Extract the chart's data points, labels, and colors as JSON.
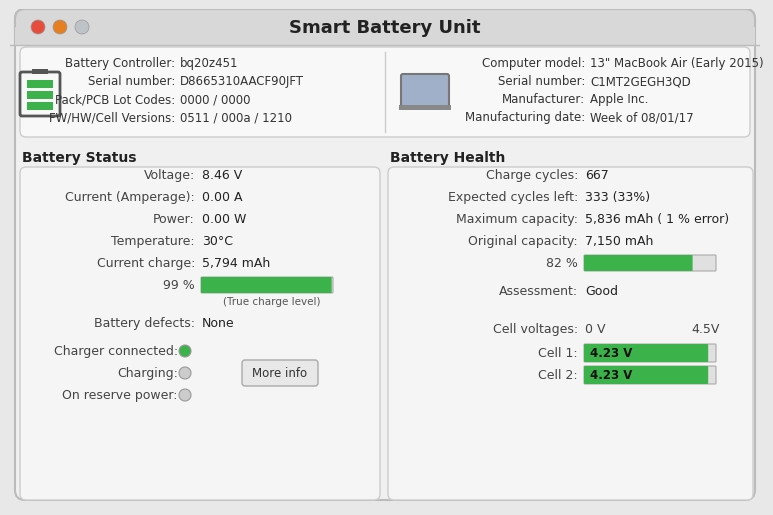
{
  "title": "Smart Battery Unit",
  "title_bar_color": "#c0392b",
  "bg_color": "#f0f0f0",
  "panel_bg": "#f5f5f5",
  "panel_border": "#d0d0d0",
  "section_header_bg": "#e8e8e8",
  "traffic_red": "#e74c3c",
  "traffic_yellow": "#e67e22",
  "traffic_gray": "#bdc3c7",
  "green_bar": "#3cb34a",
  "gray_bar": "#c8c8c8",
  "text_dark": "#222222",
  "text_label": "#555555",
  "top_info_left": [
    [
      "Battery Controller:",
      "bq20z451"
    ],
    [
      "Serial number:",
      "D8665310AACF90JFT"
    ],
    [
      "Pack/PCB Lot Codes:",
      "0000 / 0000"
    ],
    [
      "FW/HW/Cell Versions:",
      "0511 / 000a / 1210"
    ]
  ],
  "top_info_right": [
    [
      "Computer model:",
      "13\" MacBook Air (Early 2015)"
    ],
    [
      "Serial number:",
      "C1MT2GEGH3QD"
    ],
    [
      "Manufacturer:",
      "Apple Inc."
    ],
    [
      "Manufacturing date:",
      "Week of 08/01/17"
    ]
  ],
  "battery_status_label": "Battery Status",
  "battery_status": [
    [
      "Voltage:",
      "8.46 V"
    ],
    [
      "Current (Amperage):",
      "0.00 A"
    ],
    [
      "Power:",
      "0.00 W"
    ],
    [
      "Temperature:",
      "30°C"
    ],
    [
      "Current charge:",
      "5,794 mAh"
    ]
  ],
  "charge_pct": 99,
  "charge_pct_label": "99 %",
  "charge_sublabel": "(True charge level)",
  "battery_defects_label": "Battery defects:",
  "battery_defects_value": "None",
  "charger_connected_label": "Charger connected:",
  "charging_label": "Charging:",
  "reserve_label": "On reserve power:",
  "more_info_btn": "More info",
  "battery_health_label": "Battery Health",
  "battery_health": [
    [
      "Charge cycles:",
      "667"
    ],
    [
      "Expected cycles left:",
      "333 (33%)"
    ],
    [
      "Maximum capacity:",
      "5,836 mAh ( 1 % error)"
    ],
    [
      "Original capacity:",
      "7,150 mAh"
    ]
  ],
  "health_pct": 82,
  "health_pct_label": "82 %",
  "assessment_label": "Assessment:",
  "assessment_value": "Good",
  "cell_voltages_label": "Cell voltages:",
  "cell_v_min": "0 V",
  "cell_v_max": "4.5V",
  "cell1_label": "Cell 1:",
  "cell1_value": "4.23 V",
  "cell1_pct": 0.94,
  "cell2_label": "Cell 2:",
  "cell2_value": "4.23 V",
  "cell2_pct": 0.94
}
